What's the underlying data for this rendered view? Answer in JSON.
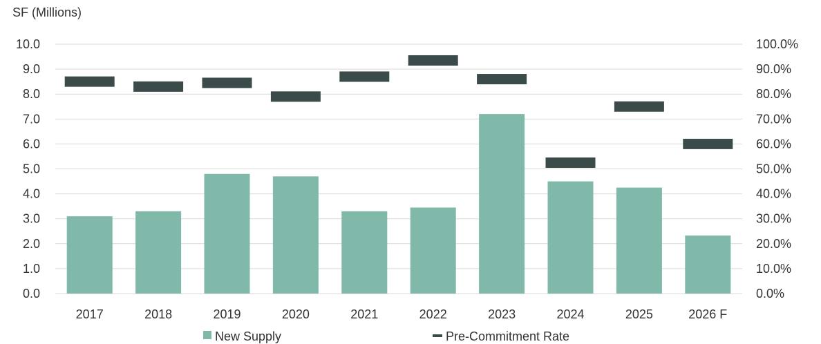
{
  "chart_data": {
    "type": "bar",
    "ylabel_left": "SF (Millions)",
    "categories": [
      "2017",
      "2018",
      "2019",
      "2020",
      "2021",
      "2022",
      "2023",
      "2024",
      "2025",
      "2026 F"
    ],
    "series": [
      {
        "name": "New Supply",
        "type": "bar",
        "axis": "left",
        "color": "#80b9aa",
        "values": [
          3.1,
          3.3,
          4.8,
          4.7,
          3.3,
          3.45,
          7.2,
          4.5,
          4.25,
          2.33
        ]
      },
      {
        "name": "Pre-Commitment Rate",
        "type": "marker",
        "axis": "right",
        "unit": "%",
        "color": "#3b4b4a",
        "values": [
          85.0,
          83.0,
          84.5,
          79.0,
          87.0,
          93.5,
          86.0,
          52.5,
          75.0,
          60.0
        ]
      }
    ],
    "left_axis": {
      "min": 0,
      "max": 10,
      "step": 1,
      "tick_labels": [
        "0.0",
        "1.0",
        "2.0",
        "3.0",
        "4.0",
        "5.0",
        "6.0",
        "7.0",
        "8.0",
        "9.0",
        "10.0"
      ]
    },
    "right_axis": {
      "min": 0,
      "max": 100,
      "step": 10,
      "tick_labels": [
        "0.0%",
        "10.0%",
        "20.0%",
        "30.0%",
        "40.0%",
        "50.0%",
        "60.0%",
        "70.0%",
        "80.0%",
        "90.0%",
        "100.0%"
      ]
    },
    "grid": true,
    "legend_position": "bottom",
    "colors": {
      "grid": "#d9d9d9",
      "text": "#333333"
    }
  }
}
